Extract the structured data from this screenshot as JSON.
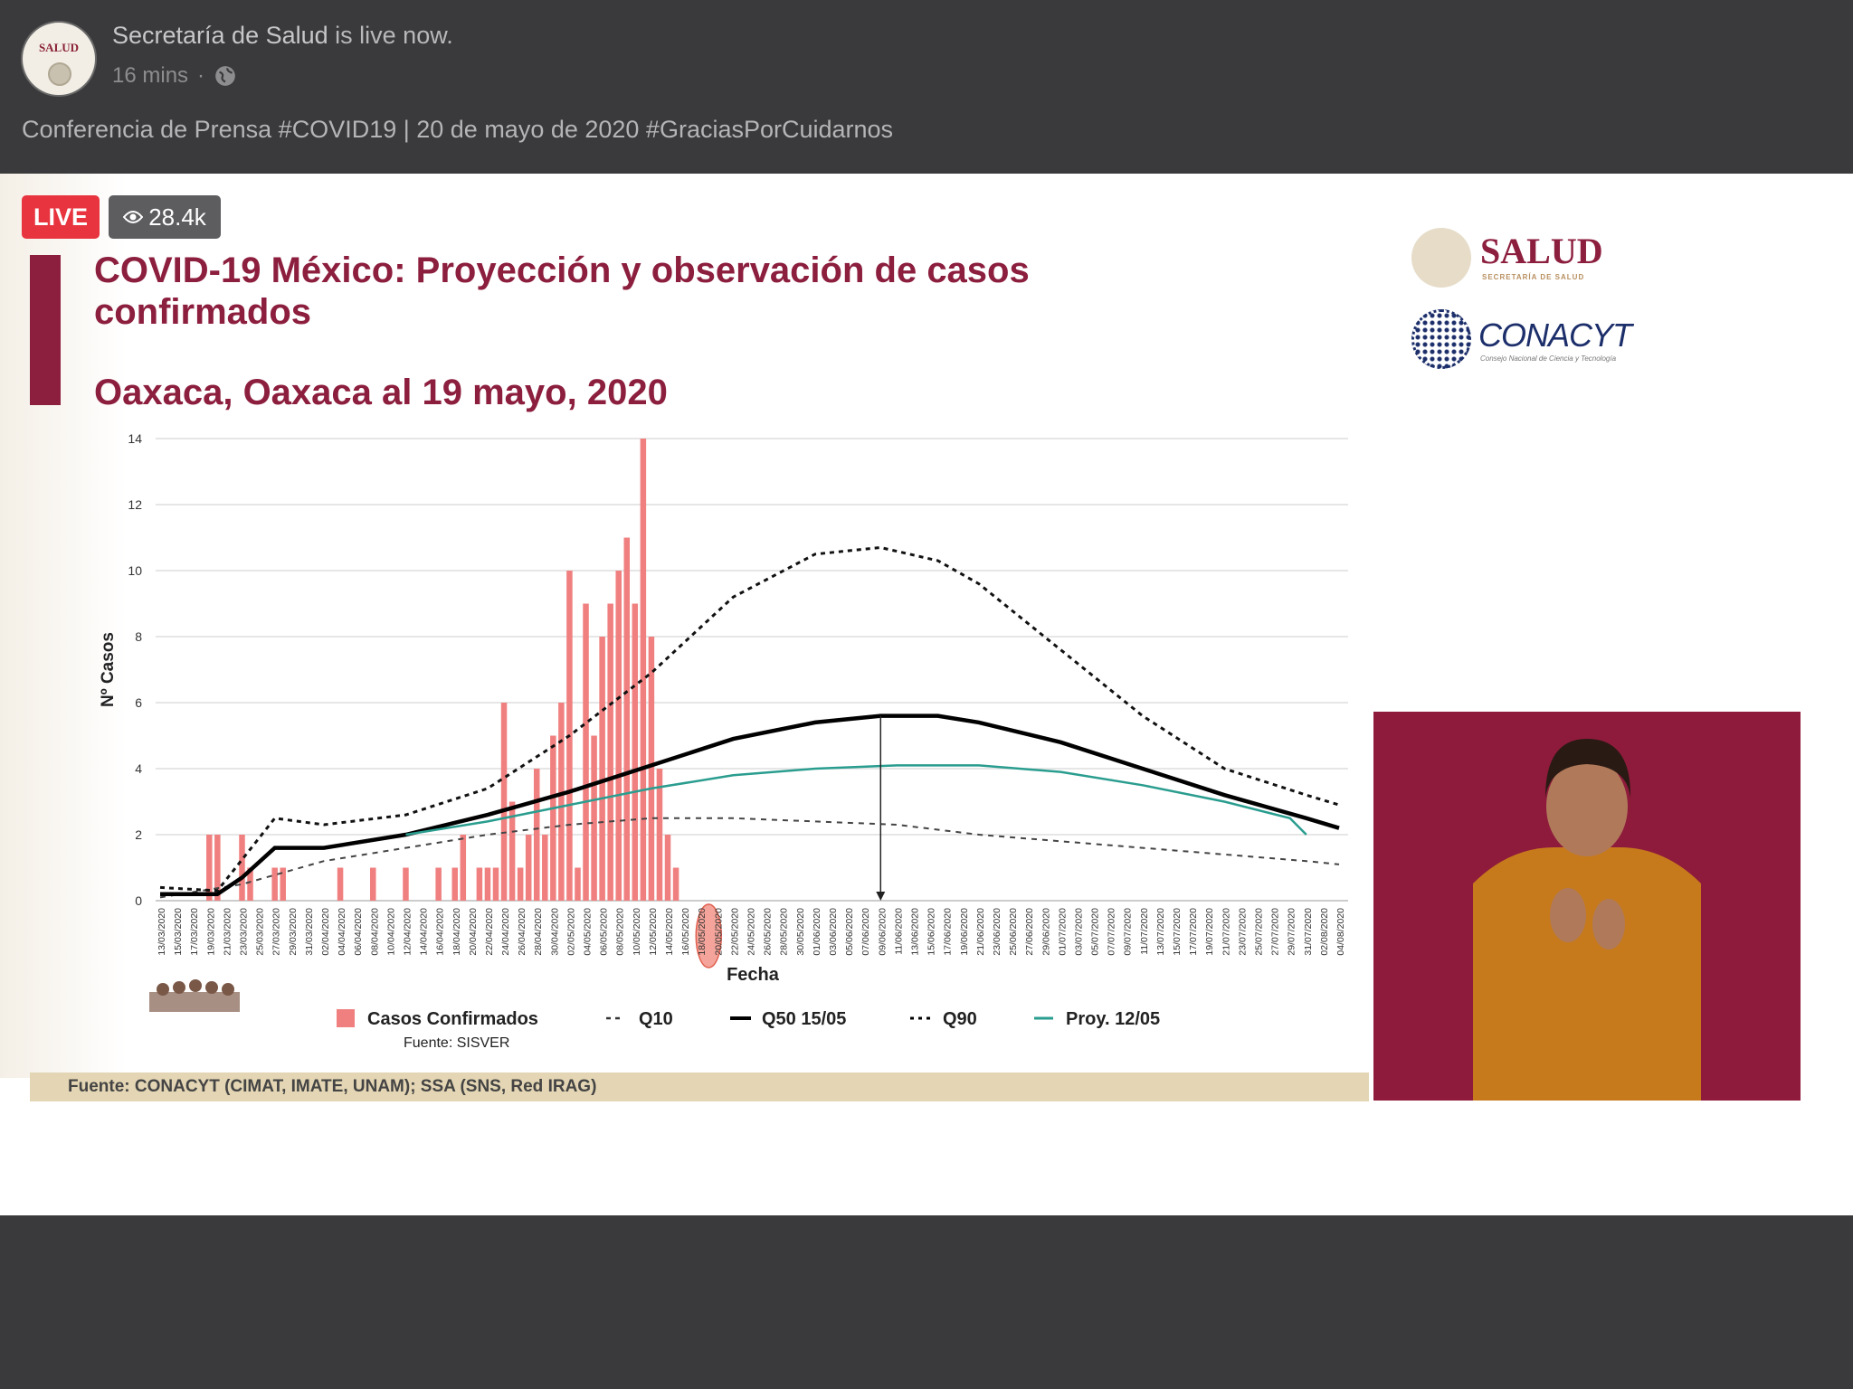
{
  "header": {
    "avatar_label": "SALUD",
    "page_name": "Secretaría de Salud",
    "status": "is live now.",
    "time": "16 mins",
    "separator": "·",
    "post_title": "Conferencia de Prensa #COVID19 | 20 de mayo de 2020 #GraciasPorCuidarnos"
  },
  "video": {
    "live_label": "LIVE",
    "viewers": "28.4k"
  },
  "slide": {
    "title_line1": "COVID-19 México: Proyección y observación de casos confirmados",
    "subtitle": "Oaxaca, Oaxaca al 19 mayo, 2020",
    "logo1": "SALUD",
    "logo1_sub": "SECRETARÍA DE SALUD",
    "logo2": "CONACYT",
    "logo2_sub": "Consejo Nacional de Ciencia y Tecnología",
    "footer": "Fuente: CONACYT (CIMAT, IMATE, UNAM);   SSA (SNS, Red IRAG)",
    "source_note": "Fuente: SISVER"
  },
  "colors": {
    "accent": "#8c1e3e",
    "bar": "#f08080",
    "teal": "#2a9d8f",
    "interpreter_bg": "#8e1b3c"
  },
  "chart_data": {
    "type": "bar",
    "title": "COVID-19 México: Proyección y observación de casos confirmados",
    "subtitle": "Oaxaca, Oaxaca al 19 mayo, 2020",
    "xlabel": "Fecha",
    "ylabel": "Nº Casos",
    "ylim": [
      0,
      14
    ],
    "yticks": [
      0,
      2,
      4,
      6,
      8,
      10,
      12,
      14
    ],
    "grid": true,
    "legend_position": "bottom",
    "x_start": "13/03/2020",
    "x_end": "04/08/2020",
    "x_tick_labels": [
      "13/03/2020",
      "15/03/2020",
      "17/03/2020",
      "19/03/2020",
      "21/03/2020",
      "23/03/2020",
      "25/03/2020",
      "27/03/2020",
      "29/03/2020",
      "31/03/2020",
      "02/04/2020",
      "04/04/2020",
      "06/04/2020",
      "08/04/2020",
      "10/04/2020",
      "12/04/2020",
      "14/04/2020",
      "16/04/2020",
      "18/04/2020",
      "20/04/2020",
      "22/04/2020",
      "24/04/2020",
      "26/04/2020",
      "28/04/2020",
      "30/04/2020",
      "02/05/2020",
      "04/05/2020",
      "06/05/2020",
      "08/05/2020",
      "10/05/2020",
      "12/05/2020",
      "14/05/2020",
      "16/05/2020",
      "18/05/2020",
      "20/05/2020",
      "22/05/2020",
      "24/05/2020",
      "26/05/2020",
      "28/05/2020",
      "30/05/2020",
      "01/06/2020",
      "03/06/2020",
      "05/06/2020",
      "07/06/2020",
      "09/06/2020",
      "11/06/2020",
      "13/06/2020",
      "15/06/2020",
      "17/06/2020",
      "19/06/2020",
      "21/06/2020",
      "23/06/2020",
      "25/06/2020",
      "27/06/2020",
      "29/06/2020",
      "01/07/2020",
      "03/07/2020",
      "05/07/2020",
      "07/07/2020",
      "09/07/2020",
      "11/07/2020",
      "13/07/2020",
      "15/07/2020",
      "17/07/2020",
      "19/07/2020",
      "21/07/2020",
      "23/07/2020",
      "25/07/2020",
      "27/07/2020",
      "29/07/2020",
      "31/07/2020",
      "02/08/2020",
      "04/08/2020"
    ],
    "highlighted_ticks": [
      "18/05/2020",
      "20/05/2020"
    ],
    "bars": {
      "name": "Casos Confirmados",
      "x": [
        "19/03/2020",
        "20/03/2020",
        "23/03/2020",
        "24/03/2020",
        "27/03/2020",
        "28/03/2020",
        "04/04/2020",
        "08/04/2020",
        "12/04/2020",
        "16/04/2020",
        "18/04/2020",
        "19/04/2020",
        "21/04/2020",
        "22/04/2020",
        "23/04/2020",
        "24/04/2020",
        "25/04/2020",
        "26/04/2020",
        "27/04/2020",
        "28/04/2020",
        "29/04/2020",
        "30/04/2020",
        "01/05/2020",
        "02/05/2020",
        "03/05/2020",
        "04/05/2020",
        "05/05/2020",
        "06/05/2020",
        "07/05/2020",
        "08/05/2020",
        "09/05/2020",
        "10/05/2020",
        "11/05/2020",
        "12/05/2020",
        "13/05/2020",
        "14/05/2020",
        "15/05/2020"
      ],
      "values": [
        2,
        2,
        2,
        1,
        1,
        1,
        1,
        1,
        1,
        1,
        1,
        2,
        1,
        1,
        1,
        6,
        3,
        1,
        2,
        4,
        2,
        5,
        6,
        10,
        1,
        9,
        5,
        8,
        9,
        10,
        11,
        9,
        14,
        8,
        4,
        2,
        1
      ]
    },
    "series": [
      {
        "name": "Q10",
        "style": "dashed",
        "x": [
          "13/03/2020",
          "23/03/2020",
          "02/04/2020",
          "12/04/2020",
          "22/04/2020",
          "02/05/2020",
          "12/05/2020",
          "22/05/2020",
          "01/06/2020",
          "11/06/2020",
          "21/06/2020",
          "01/07/2020",
          "11/07/2020",
          "21/07/2020",
          "31/07/2020",
          "04/08/2020"
        ],
        "values": [
          0.1,
          0.5,
          1.2,
          1.6,
          2.0,
          2.3,
          2.5,
          2.5,
          2.4,
          2.3,
          2.0,
          1.8,
          1.6,
          1.4,
          1.2,
          1.1
        ]
      },
      {
        "name": "Q50 15/05",
        "style": "solid",
        "x": [
          "13/03/2020",
          "20/03/2020",
          "23/03/2020",
          "27/03/2020",
          "02/04/2020",
          "12/04/2020",
          "22/04/2020",
          "02/05/2020",
          "12/05/2020",
          "22/05/2020",
          "01/06/2020",
          "09/06/2020",
          "16/06/2020",
          "21/06/2020",
          "01/07/2020",
          "11/07/2020",
          "21/07/2020",
          "31/07/2020",
          "04/08/2020"
        ],
        "values": [
          0.2,
          0.2,
          0.7,
          1.6,
          1.6,
          2.0,
          2.6,
          3.3,
          4.1,
          4.9,
          5.4,
          5.6,
          5.6,
          5.4,
          4.8,
          4.0,
          3.2,
          2.5,
          2.2
        ]
      },
      {
        "name": "Q90",
        "style": "dotted",
        "x": [
          "13/03/2020",
          "20/03/2020",
          "27/03/2020",
          "02/04/2020",
          "12/04/2020",
          "22/04/2020",
          "02/05/2020",
          "12/05/2020",
          "22/05/2020",
          "01/06/2020",
          "09/06/2020",
          "16/06/2020",
          "21/06/2020",
          "01/07/2020",
          "11/07/2020",
          "21/07/2020",
          "31/07/2020",
          "04/08/2020"
        ],
        "values": [
          0.4,
          0.3,
          2.5,
          2.3,
          2.6,
          3.4,
          5.0,
          6.9,
          9.2,
          10.5,
          10.7,
          10.3,
          9.6,
          7.6,
          5.6,
          4.0,
          3.2,
          2.9
        ]
      },
      {
        "name": "Proy. 12/05",
        "style": "teal",
        "x": [
          "12/04/2020",
          "22/04/2020",
          "02/05/2020",
          "12/05/2020",
          "22/05/2020",
          "01/06/2020",
          "11/06/2020",
          "21/06/2020",
          "01/07/2020",
          "11/07/2020",
          "21/07/2020",
          "29/07/2020",
          "31/07/2020"
        ],
        "values": [
          2.0,
          2.4,
          2.9,
          3.4,
          3.8,
          4.0,
          4.1,
          4.1,
          3.9,
          3.5,
          3.0,
          2.5,
          2.0
        ]
      }
    ],
    "annotation": {
      "type": "vertical_arrow",
      "x": "09/06/2020",
      "from": 5.6,
      "to": 0
    }
  }
}
